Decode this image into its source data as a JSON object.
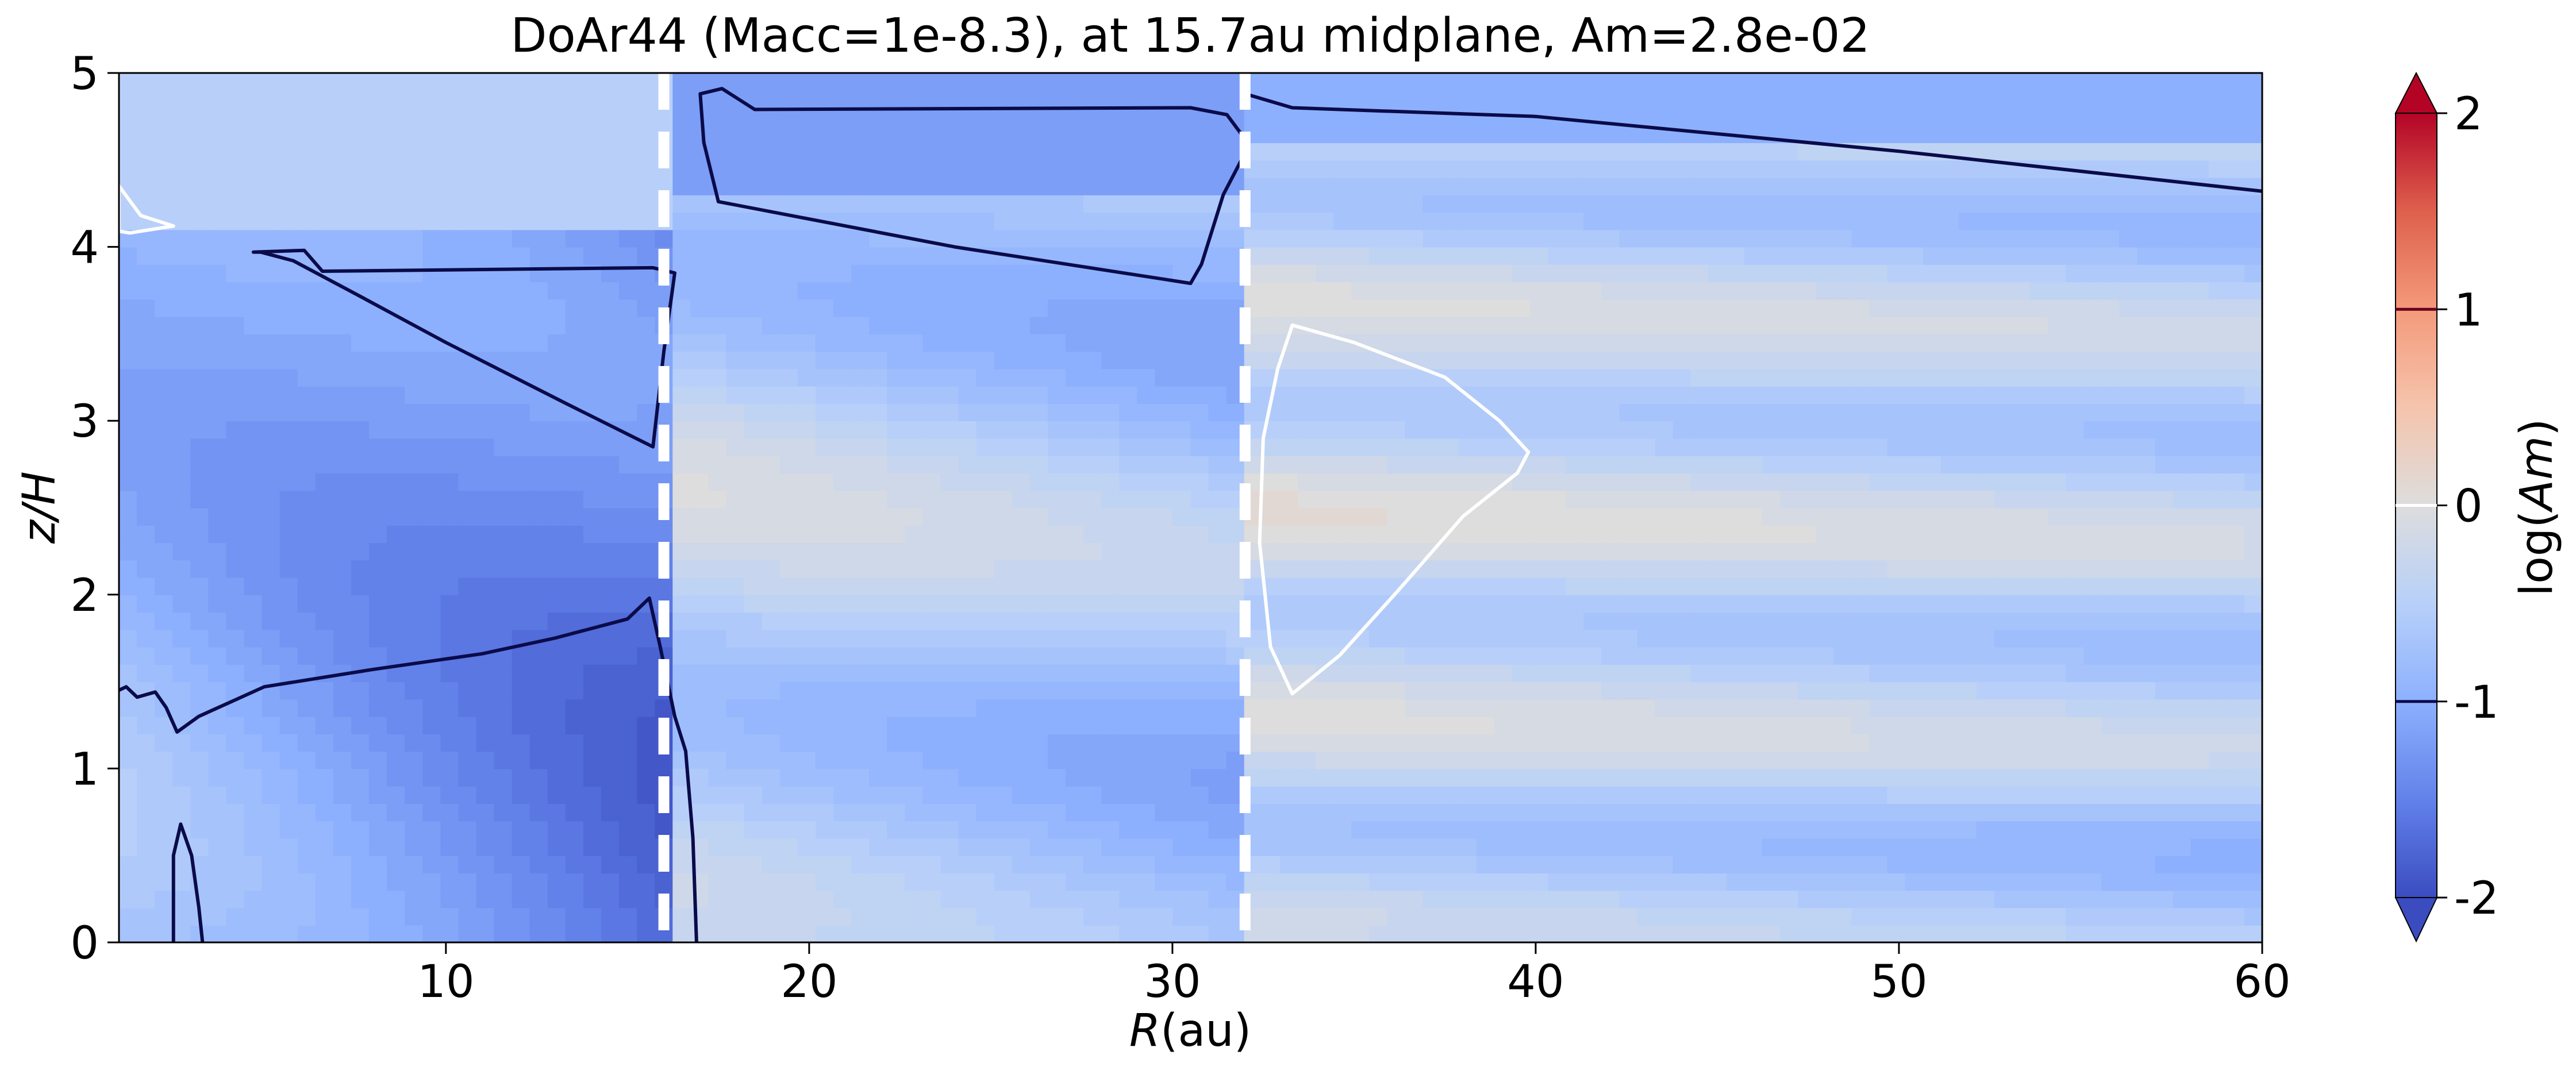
{
  "chart_data": {
    "type": "heatmap",
    "title": "DoAr44 (Macc=1e-8.3), at 15.7au midplane, Am=2.8e-02",
    "xlabel": {
      "symbol": "R",
      "unit": "(au)"
    },
    "ylabel": "z/H",
    "xlim": [
      1,
      60
    ],
    "ylim": [
      0,
      5
    ],
    "xticks": [
      10,
      20,
      30,
      40,
      50,
      60
    ],
    "xtick_labels": [
      "10",
      "20",
      "30",
      "40",
      "50",
      "60"
    ],
    "yticks": [
      0,
      1,
      2,
      3,
      4,
      5
    ],
    "ytick_labels": [
      "0",
      "1",
      "2",
      "3",
      "4",
      "5"
    ],
    "colorbar": {
      "label": "log(Am)",
      "label_parts": {
        "prefix": "log(",
        "symbol": "Am",
        "suffix": ")"
      },
      "range": [
        -2,
        2
      ],
      "colormap": "coolwarm",
      "extend": "both",
      "ticks": [
        2,
        1,
        0,
        -1,
        -2
      ],
      "tick_labels": [
        "2",
        "1",
        "0",
        "-1",
        "-2"
      ],
      "contour_levels": [
        {
          "value": 1,
          "color": "#67001f"
        },
        {
          "value": 0,
          "color": "#ffffff"
        },
        {
          "value": -1,
          "color": "#0b0b4a"
        }
      ]
    },
    "gap_lines_au": [
      16,
      32
    ],
    "gap_line_color": "#ffffff",
    "regions": [
      {
        "r": [
          1,
          16
        ],
        "scale": 0.95,
        "level_mid": -1.0,
        "amp": 0.38,
        "rmid": 6,
        "rslope": -0.045,
        "lam": 0.23,
        "lr": 0.025,
        "zc": 2.2
      },
      {
        "r": [
          16,
          32
        ],
        "scale": 1.9,
        "level_mid": -0.55,
        "amp": 0.38,
        "rmid": 24,
        "rslope": -0.02,
        "lam": 0.22,
        "lr": 0.012,
        "zc": 2.3
      },
      {
        "r": [
          32,
          60
        ],
        "scale": 3.8,
        "level_mid": -0.35,
        "amp": 0.32,
        "rmid": 46,
        "rslope": -0.008,
        "lam": 0.22,
        "lr": 0.006,
        "zc": 2.5
      }
    ],
    "top_layer_values": [
      {
        "r": [
          1,
          16
        ],
        "above_z": 4.05,
        "value": -0.55
      },
      {
        "r": [
          16,
          32
        ],
        "above_z": 4.25,
        "value": -1.18
      },
      {
        "r": [
          32,
          60
        ],
        "above_z": 4.55,
        "value": -1.05
      }
    ],
    "contours": [
      {
        "level": -1,
        "points": [
          [
            4.7,
            3.97
          ],
          [
            6.1,
            3.98
          ],
          [
            6.6,
            3.86
          ],
          [
            15.7,
            3.88
          ],
          [
            16.3,
            3.85
          ],
          [
            16.0,
            3.4
          ],
          [
            15.7,
            2.85
          ],
          [
            13.3,
            3.1
          ],
          [
            10.0,
            3.45
          ],
          [
            7.6,
            3.72
          ],
          [
            5.8,
            3.92
          ],
          [
            4.9,
            3.97
          ]
        ]
      },
      {
        "level": -1,
        "points": [
          [
            1.0,
            1.45
          ],
          [
            1.2,
            1.47
          ],
          [
            1.5,
            1.41
          ],
          [
            2.0,
            1.44
          ],
          [
            2.3,
            1.35
          ],
          [
            2.6,
            1.21
          ],
          [
            3.2,
            1.3
          ],
          [
            5.0,
            1.47
          ],
          [
            8.0,
            1.57
          ],
          [
            11.0,
            1.66
          ],
          [
            13.0,
            1.75
          ],
          [
            15.0,
            1.86
          ],
          [
            15.6,
            1.98
          ],
          [
            15.9,
            1.7
          ],
          [
            16.3,
            1.3
          ],
          [
            16.6,
            1.1
          ],
          [
            16.8,
            0.6
          ],
          [
            16.9,
            0
          ]
        ]
      },
      {
        "level": -1,
        "points": [
          [
            2.5,
            0
          ],
          [
            2.5,
            0.5
          ],
          [
            2.7,
            0.68
          ],
          [
            3.0,
            0.5
          ],
          [
            3.2,
            0.2
          ],
          [
            3.3,
            0
          ]
        ]
      },
      {
        "level": -1,
        "points": [
          [
            17.0,
            4.88
          ],
          [
            17.6,
            4.91
          ],
          [
            18.5,
            4.79
          ],
          [
            30.5,
            4.8
          ],
          [
            31.5,
            4.76
          ],
          [
            32.0,
            4.62
          ],
          [
            31.9,
            4.5
          ],
          [
            31.4,
            4.3
          ],
          [
            30.8,
            3.9
          ],
          [
            30.5,
            3.79
          ],
          [
            24.0,
            4.0
          ],
          [
            17.5,
            4.26
          ],
          [
            17.1,
            4.6
          ]
        ]
      },
      {
        "level": -1,
        "points": [
          [
            32.0,
            4.88
          ],
          [
            33.3,
            4.8
          ],
          [
            40.0,
            4.75
          ],
          [
            50.0,
            4.55
          ],
          [
            60.0,
            4.32
          ]
        ]
      },
      {
        "level": 0,
        "points": [
          [
            1.0,
            4.35
          ],
          [
            1.6,
            4.18
          ],
          [
            2.5,
            4.12
          ],
          [
            1.3,
            4.08
          ],
          [
            1.0,
            4.09
          ]
        ]
      },
      {
        "level": 0,
        "points": [
          [
            33.3,
            3.55
          ],
          [
            35.0,
            3.45
          ],
          [
            37.5,
            3.25
          ],
          [
            39.0,
            3.0
          ],
          [
            39.8,
            2.82
          ],
          [
            39.5,
            2.7
          ],
          [
            38.0,
            2.45
          ],
          [
            36.2,
            2.02
          ],
          [
            34.6,
            1.65
          ],
          [
            33.3,
            1.43
          ],
          [
            32.7,
            1.7
          ],
          [
            32.4,
            2.3
          ],
          [
            32.5,
            2.9
          ],
          [
            32.9,
            3.3
          ]
        ]
      }
    ]
  }
}
